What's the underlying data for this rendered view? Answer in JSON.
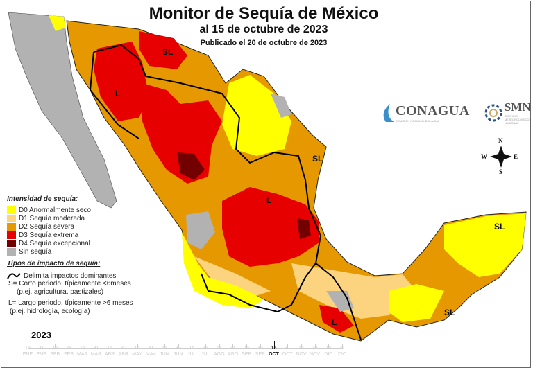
{
  "title": "Monitor de Sequía de México",
  "subtitle": "al 15 de octubre de 2023",
  "published": "Publicado el 20 de octubre de 2023",
  "legend": {
    "intensity_title": "Intensidad de sequía:",
    "items": [
      {
        "label": "D0 Anormalmente seco",
        "color": "#ffff00"
      },
      {
        "label": "D1 Sequía moderada",
        "color": "#fcd37f"
      },
      {
        "label": "D2 Sequía severa",
        "color": "#e69800"
      },
      {
        "label": "D3 Sequía extrema",
        "color": "#e60000"
      },
      {
        "label": "D4 Sequía excepcional",
        "color": "#730000"
      },
      {
        "label": "Sin sequía",
        "color": "#b2b2b2"
      }
    ],
    "impact_title": "Tipos de impacto de sequía:",
    "boundary": "Delimita impactos dominantes",
    "short_1": "S= Corto periodo, típicamente <6meses",
    "short_2": "(p.ej. agricultura, pastizales)",
    "long_1": "L= Largo periodo, típicamente >6 meses",
    "long_2": "(p.ej. hidrología, ecología)"
  },
  "logos": {
    "conagua": "CONAGUA",
    "conagua_sub": "COMISIÓN NACIONAL DEL AGUA",
    "smn": "SMN",
    "smn_sub": "SERVICIO METEOROLÓGICO NACIONAL"
  },
  "compass": {
    "n": "N",
    "s": "S",
    "e": "E",
    "w": "W"
  },
  "map_labels": {
    "sl_north": "SL",
    "l_nw": "L",
    "sl_ne": "SL",
    "l_center": "L",
    "sl_yuc": "SL",
    "sl_se": "SL",
    "l_south": "L"
  },
  "timeline": {
    "year": "2023",
    "current_index": 18,
    "ticks": [
      {
        "d": "15",
        "m": "ENE"
      },
      {
        "d": "31",
        "m": "ENE"
      },
      {
        "d": "15",
        "m": "FEB"
      },
      {
        "d": "28",
        "m": "FEB"
      },
      {
        "d": "15",
        "m": "MAR"
      },
      {
        "d": "31",
        "m": "MAR"
      },
      {
        "d": "15",
        "m": "ABR"
      },
      {
        "d": "30",
        "m": "ABR"
      },
      {
        "d": "15",
        "m": "MAY"
      },
      {
        "d": "31",
        "m": "MAY"
      },
      {
        "d": "15",
        "m": "JUN"
      },
      {
        "d": "30",
        "m": "JUN"
      },
      {
        "d": "15",
        "m": "JUL"
      },
      {
        "d": "31",
        "m": "JUL"
      },
      {
        "d": "15",
        "m": "AGO"
      },
      {
        "d": "31",
        "m": "AGO"
      },
      {
        "d": "15",
        "m": "SEP"
      },
      {
        "d": "30",
        "m": "SEP"
      },
      {
        "d": "15",
        "m": "OCT"
      },
      {
        "d": "31",
        "m": "OCT"
      },
      {
        "d": "15",
        "m": "NOV"
      },
      {
        "d": "30",
        "m": "NOV"
      },
      {
        "d": "15",
        "m": "DIC"
      },
      {
        "d": "31",
        "m": "DIC"
      }
    ]
  }
}
